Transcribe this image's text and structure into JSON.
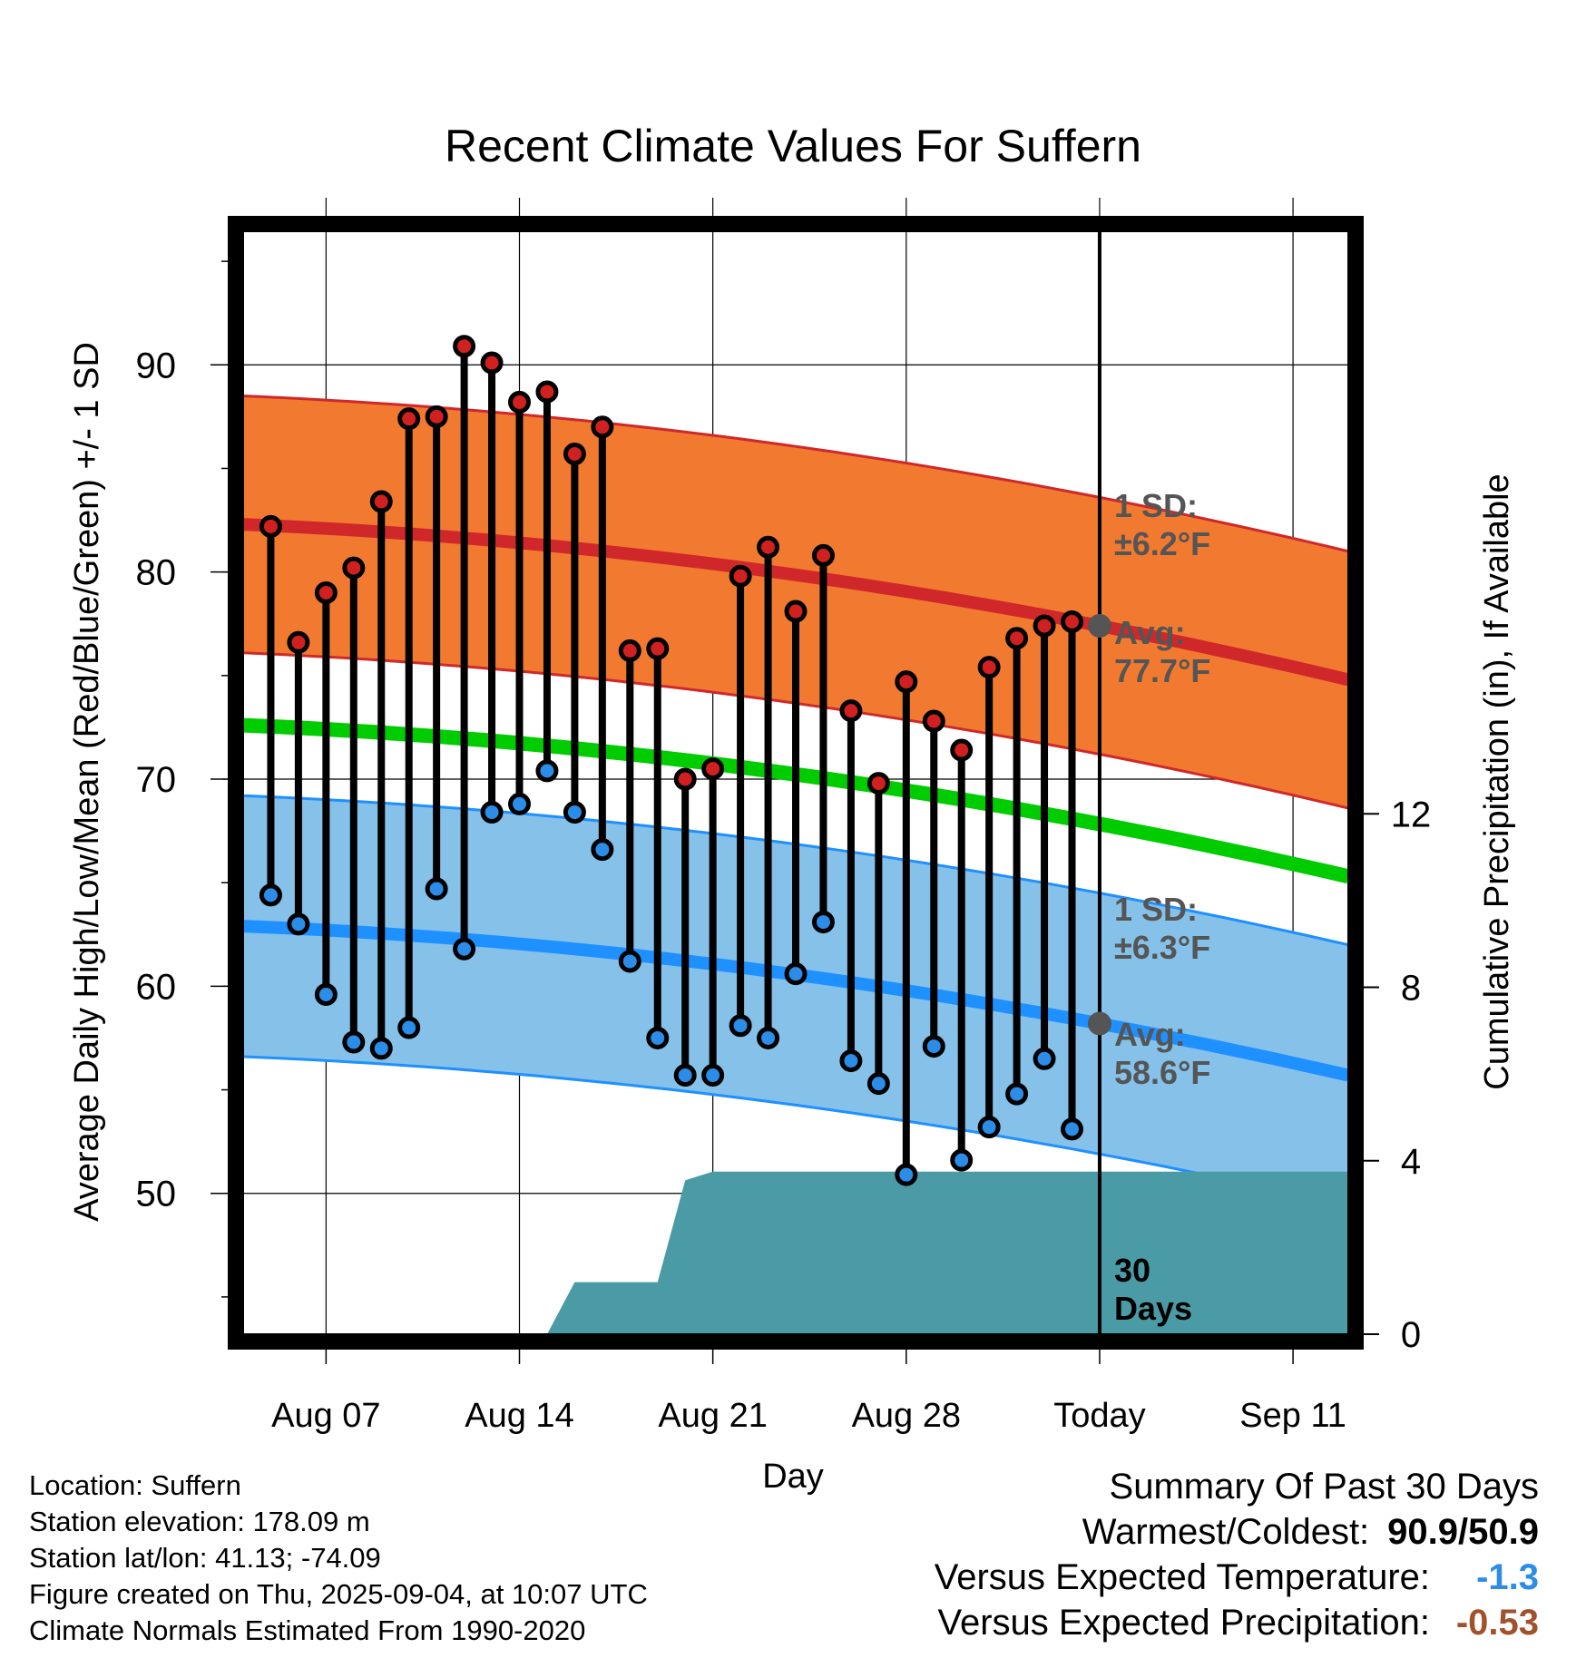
{
  "title": "Recent Climate Values For Suffern",
  "chart_data": {
    "type": "line",
    "title": "Recent Climate Values For Suffern",
    "xlabel": "Day",
    "ylabel_left": "Average Daily High/Low/Mean (Red/Blue/Green) +/- 1 SD",
    "ylabel_right": "Cumulative Precipitation (in), If Available",
    "x_tick_labels": [
      "Aug 07",
      "Aug 14",
      "Aug 21",
      "Aug 28",
      "Today",
      "Sep 11"
    ],
    "x_tick_dates": [
      "2025-08-07",
      "2025-08-14",
      "2025-08-21",
      "2025-08-28",
      "2025-09-04",
      "2025-09-11"
    ],
    "xlim": [
      "2025-08-04",
      "2025-09-13"
    ],
    "today": "2025-09-04",
    "ylim_left": [
      43.2,
      96.8
    ],
    "yticks_left": [
      50,
      60,
      70,
      80,
      90
    ],
    "ylim_right": [
      0,
      25.6
    ],
    "yticks_right": [
      0,
      4,
      8,
      12
    ],
    "grid": true,
    "dates": [
      "2025-08-05",
      "2025-08-06",
      "2025-08-07",
      "2025-08-08",
      "2025-08-09",
      "2025-08-10",
      "2025-08-11",
      "2025-08-12",
      "2025-08-13",
      "2025-08-14",
      "2025-08-15",
      "2025-08-16",
      "2025-08-17",
      "2025-08-18",
      "2025-08-19",
      "2025-08-20",
      "2025-08-21",
      "2025-08-22",
      "2025-08-23",
      "2025-08-24",
      "2025-08-25",
      "2025-08-26",
      "2025-08-27",
      "2025-08-28",
      "2025-08-29",
      "2025-08-30",
      "2025-08-31",
      "2025-09-01",
      "2025-09-02",
      "2025-09-03"
    ],
    "series": [
      {
        "name": "Daily High",
        "color": "#d02020",
        "values": [
          82.2,
          76.6,
          79.0,
          80.2,
          83.4,
          87.4,
          87.5,
          90.9,
          90.1,
          88.2,
          88.7,
          85.7,
          87.0,
          76.2,
          76.3,
          70.0,
          70.5,
          79.8,
          81.2,
          78.1,
          80.8,
          73.3,
          69.8,
          74.7,
          72.8,
          71.4,
          75.4,
          76.8,
          77.4,
          77.6
        ]
      },
      {
        "name": "Daily Low",
        "color": "#2b8de8",
        "values": [
          64.4,
          63.0,
          59.6,
          57.3,
          57.0,
          58.0,
          64.7,
          61.8,
          68.4,
          68.8,
          70.4,
          68.4,
          66.6,
          61.2,
          57.5,
          55.7,
          55.7,
          58.1,
          57.5,
          60.6,
          63.1,
          56.4,
          55.3,
          50.9,
          57.1,
          51.6,
          53.2,
          54.8,
          56.5,
          53.1
        ]
      }
    ],
    "normals": {
      "avg_high_start": 82.3,
      "avg_high_end": 74.8,
      "high_sd": 6.2,
      "avg_low_start": 62.9,
      "avg_low_end": 55.7,
      "low_sd": 6.3,
      "avg_mean_start": 72.6,
      "avg_mean_end": 65.3,
      "high_band_color": "#f27a30",
      "high_line_color": "#d0282a",
      "low_band_color": "#85c1e9",
      "low_line_color": "#1e90ff",
      "mean_line_color": "#00cc00"
    },
    "precipitation": {
      "color": "#4a9ba5",
      "points": [
        [
          "2025-08-15",
          0.0
        ],
        [
          "2025-08-16",
          1.2
        ],
        [
          "2025-08-19",
          1.2
        ],
        [
          "2025-08-20",
          3.55
        ],
        [
          "2025-08-21",
          3.75
        ],
        [
          "2025-09-13",
          3.75
        ]
      ]
    },
    "annotations": {
      "high_sd_label_1": "1 SD:",
      "high_sd_label_2": "±6.2°F",
      "high_avg_label_1": "Avg:",
      "high_avg_label_2": "77.7°F",
      "low_sd_label_1": "1 SD:",
      "low_sd_label_2": "±6.3°F",
      "low_avg_label_1": "Avg:",
      "low_avg_label_2": "58.6°F",
      "days_label_1": "30",
      "days_label_2": "Days",
      "label_color": "#555555"
    }
  },
  "info": {
    "location": "Location: Suffern",
    "elevation": "Station elevation: 178.09 m",
    "latlon": "Station lat/lon: 41.13; -74.09",
    "created": "Figure created on Thu, 2025-09-04, at 10:07 UTC",
    "normals": "Climate Normals Estimated From 1990-2020"
  },
  "summary": {
    "heading": "Summary Of Past 30 Days",
    "warmest_label": "Warmest/Coldest:",
    "warmest_value": "90.9/50.9",
    "temp_label": "Versus Expected Temperature:",
    "temp_value": "-1.3",
    "temp_color": "#2b8de8",
    "precip_label": "Versus Expected Precipitation:",
    "precip_value": "-0.53",
    "precip_color": "#a0522d"
  }
}
